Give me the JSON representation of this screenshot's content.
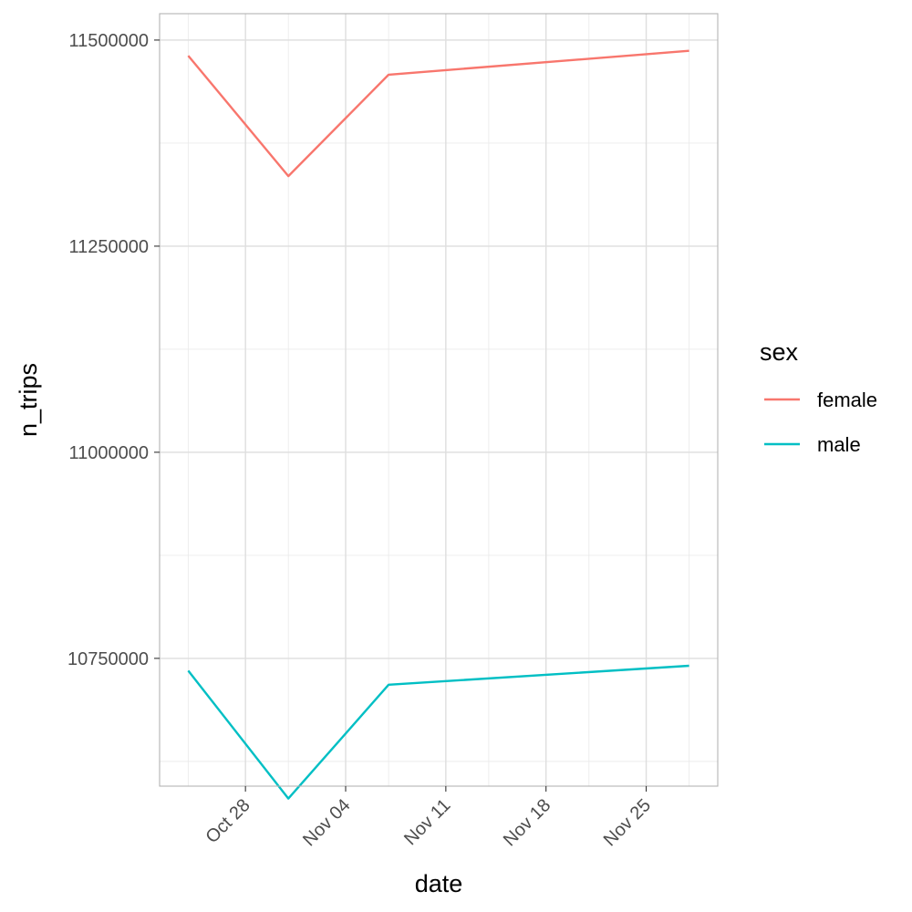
{
  "chart_data": {
    "type": "line",
    "xlabel": "date",
    "ylabel": "n_trips",
    "xlim": [
      "2024-10-22",
      "2024-11-30"
    ],
    "ylim": [
      10595000,
      11532000
    ],
    "x_ticks": [
      {
        "date": "2024-10-28",
        "label": "Oct 28"
      },
      {
        "date": "2024-11-04",
        "label": "Nov 04"
      },
      {
        "date": "2024-11-11",
        "label": "Nov 11"
      },
      {
        "date": "2024-11-18",
        "label": "Nov 18"
      },
      {
        "date": "2024-11-25",
        "label": "Nov 25"
      }
    ],
    "x_minor_dates": [
      "2024-10-24",
      "2024-10-31",
      "2024-11-07",
      "2024-11-14",
      "2024-11-21",
      "2024-11-28"
    ],
    "y_ticks": [
      {
        "value": 10750000,
        "label": "10750000"
      },
      {
        "value": 11000000,
        "label": "11000000"
      },
      {
        "value": 11250000,
        "label": "11250000"
      },
      {
        "value": 11500000,
        "label": "11500000"
      }
    ],
    "y_minor_values": [
      10625000,
      10875000,
      11125000,
      11375000
    ],
    "grid": true,
    "legend": {
      "title": "sex",
      "position": "right"
    },
    "x": [
      "2024-10-24",
      "2024-10-31",
      "2024-11-07",
      "2024-11-28"
    ],
    "series": [
      {
        "name": "female",
        "color": "#F8766D",
        "values": [
          11481000,
          11335000,
          11458000,
          11487000
        ]
      },
      {
        "name": "male",
        "color": "#00BFC4",
        "values": [
          10735000,
          10580000,
          10718000,
          10741000
        ]
      }
    ]
  }
}
